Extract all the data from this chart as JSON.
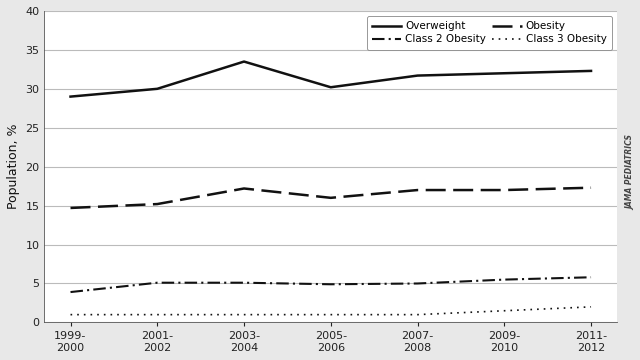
{
  "x_labels": [
    "1999-\n2000",
    "2001-\n2002",
    "2003-\n2004",
    "2005-\n2006",
    "2007-\n2008",
    "2009-\n2010",
    "2011-\n2012"
  ],
  "x_positions": [
    0,
    1,
    2,
    3,
    4,
    5,
    6
  ],
  "overweight": [
    29.0,
    30.0,
    33.5,
    30.2,
    31.7,
    32.0,
    32.3
  ],
  "obesity": [
    14.7,
    15.2,
    17.2,
    16.0,
    17.0,
    17.0,
    17.3
  ],
  "class2_obesity": [
    3.9,
    5.1,
    5.1,
    4.9,
    5.0,
    5.5,
    5.8
  ],
  "class3_obesity": [
    1.0,
    1.0,
    1.0,
    1.0,
    1.0,
    1.5,
    2.0
  ],
  "ylabel": "Population, %",
  "ylim": [
    0,
    40
  ],
  "yticks": [
    0,
    5,
    10,
    15,
    20,
    25,
    30,
    35,
    40
  ],
  "watermark": "JAMA PEDIATRICS",
  "bg_color": "#e8e8e8",
  "plot_bg_color": "#ffffff",
  "line_color": "#111111",
  "grid_color": "#bbbbbb"
}
